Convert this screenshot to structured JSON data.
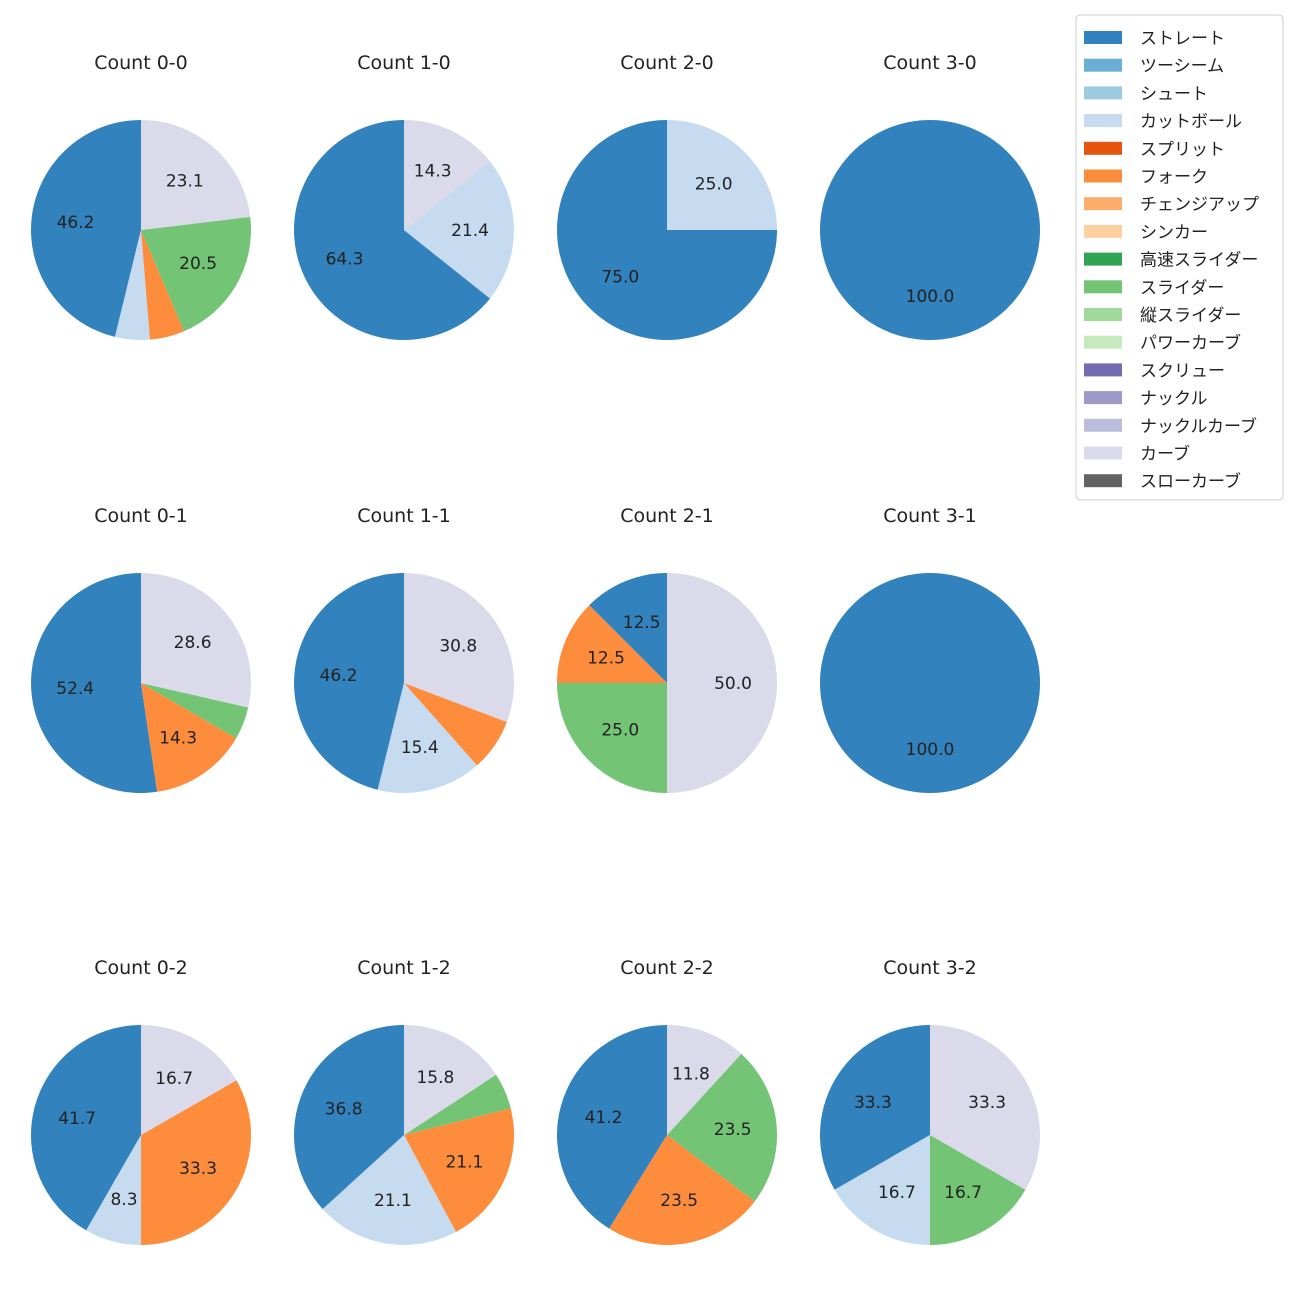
{
  "chart_data": {
    "type": "pie",
    "legend": {
      "placement": "top-right",
      "entries": [
        {
          "name": "ストレート",
          "color": "#3182bd"
        },
        {
          "name": "ツーシーム",
          "color": "#6baed6"
        },
        {
          "name": "シュート",
          "color": "#9ecae1"
        },
        {
          "name": "カットボール",
          "color": "#c6dbef"
        },
        {
          "name": "スプリット",
          "color": "#e6550d"
        },
        {
          "name": "フォーク",
          "color": "#fd8d3c"
        },
        {
          "name": "チェンジアップ",
          "color": "#fdae6b"
        },
        {
          "name": "シンカー",
          "color": "#fdd0a2"
        },
        {
          "name": "高速スライダー",
          "color": "#31a354"
        },
        {
          "name": "スライダー",
          "color": "#74c476"
        },
        {
          "name": "縦スライダー",
          "color": "#a1d99b"
        },
        {
          "name": "パワーカーブ",
          "color": "#c7e9c0"
        },
        {
          "name": "スクリュー",
          "color": "#756bb1"
        },
        {
          "name": "ナックル",
          "color": "#9e9ac8"
        },
        {
          "name": "ナックルカーブ",
          "color": "#bcbddc"
        },
        {
          "name": "カーブ",
          "color": "#dadaeb"
        },
        {
          "name": "スローカーブ",
          "color": "#636363"
        }
      ]
    },
    "pies": [
      {
        "title": "Count 0-0",
        "slices": [
          {
            "pitch": "ストレート",
            "value": 46.2,
            "label": "46.2"
          },
          {
            "pitch": "カットボール",
            "value": 5.1,
            "label": ""
          },
          {
            "pitch": "フォーク",
            "value": 5.1,
            "label": ""
          },
          {
            "pitch": "スライダー",
            "value": 20.5,
            "label": "20.5"
          },
          {
            "pitch": "カーブ",
            "value": 23.1,
            "label": "23.1"
          }
        ]
      },
      {
        "title": "Count 1-0",
        "slices": [
          {
            "pitch": "ストレート",
            "value": 64.3,
            "label": "64.3"
          },
          {
            "pitch": "カットボール",
            "value": 21.4,
            "label": "21.4"
          },
          {
            "pitch": "カーブ",
            "value": 14.3,
            "label": "14.3"
          }
        ]
      },
      {
        "title": "Count 2-0",
        "slices": [
          {
            "pitch": "ストレート",
            "value": 75.0,
            "label": "75.0"
          },
          {
            "pitch": "カットボール",
            "value": 25.0,
            "label": "25.0"
          }
        ]
      },
      {
        "title": "Count 3-0",
        "slices": [
          {
            "pitch": "ストレート",
            "value": 100.0,
            "label": "100.0"
          }
        ]
      },
      {
        "title": "Count 0-1",
        "slices": [
          {
            "pitch": "ストレート",
            "value": 52.4,
            "label": "52.4"
          },
          {
            "pitch": "フォーク",
            "value": 14.3,
            "label": "14.3"
          },
          {
            "pitch": "スライダー",
            "value": 4.8,
            "label": ""
          },
          {
            "pitch": "カーブ",
            "value": 28.6,
            "label": "28.6"
          }
        ]
      },
      {
        "title": "Count 1-1",
        "slices": [
          {
            "pitch": "ストレート",
            "value": 46.2,
            "label": "46.2"
          },
          {
            "pitch": "カットボール",
            "value": 15.4,
            "label": "15.4"
          },
          {
            "pitch": "フォーク",
            "value": 7.7,
            "label": ""
          },
          {
            "pitch": "カーブ",
            "value": 30.8,
            "label": "30.8"
          }
        ]
      },
      {
        "title": "Count 2-1",
        "slices": [
          {
            "pitch": "ストレート",
            "value": 12.5,
            "label": "12.5"
          },
          {
            "pitch": "フォーク",
            "value": 12.5,
            "label": "12.5"
          },
          {
            "pitch": "スライダー",
            "value": 25.0,
            "label": "25.0"
          },
          {
            "pitch": "カーブ",
            "value": 50.0,
            "label": "50.0"
          }
        ]
      },
      {
        "title": "Count 3-1",
        "slices": [
          {
            "pitch": "ストレート",
            "value": 100.0,
            "label": "100.0"
          }
        ]
      },
      {
        "title": "Count 0-2",
        "slices": [
          {
            "pitch": "ストレート",
            "value": 41.7,
            "label": "41.7"
          },
          {
            "pitch": "カットボール",
            "value": 8.3,
            "label": "8.3"
          },
          {
            "pitch": "フォーク",
            "value": 33.3,
            "label": "33.3"
          },
          {
            "pitch": "カーブ",
            "value": 16.7,
            "label": "16.7"
          }
        ]
      },
      {
        "title": "Count 1-2",
        "slices": [
          {
            "pitch": "ストレート",
            "value": 36.8,
            "label": "36.8"
          },
          {
            "pitch": "カットボール",
            "value": 21.1,
            "label": "21.1"
          },
          {
            "pitch": "フォーク",
            "value": 21.1,
            "label": "21.1"
          },
          {
            "pitch": "スライダー",
            "value": 5.3,
            "label": ""
          },
          {
            "pitch": "カーブ",
            "value": 15.8,
            "label": "15.8"
          }
        ]
      },
      {
        "title": "Count 2-2",
        "slices": [
          {
            "pitch": "ストレート",
            "value": 41.2,
            "label": "41.2"
          },
          {
            "pitch": "フォーク",
            "value": 23.5,
            "label": "23.5"
          },
          {
            "pitch": "スライダー",
            "value": 23.5,
            "label": "23.5"
          },
          {
            "pitch": "カーブ",
            "value": 11.8,
            "label": "11.8"
          }
        ]
      },
      {
        "title": "Count 3-2",
        "slices": [
          {
            "pitch": "ストレート",
            "value": 33.3,
            "label": "33.3"
          },
          {
            "pitch": "カットボール",
            "value": 16.7,
            "label": "16.7"
          },
          {
            "pitch": "スライダー",
            "value": 16.7,
            "label": "16.7"
          },
          {
            "pitch": "カーブ",
            "value": 33.3,
            "label": "33.3"
          }
        ]
      }
    ]
  }
}
